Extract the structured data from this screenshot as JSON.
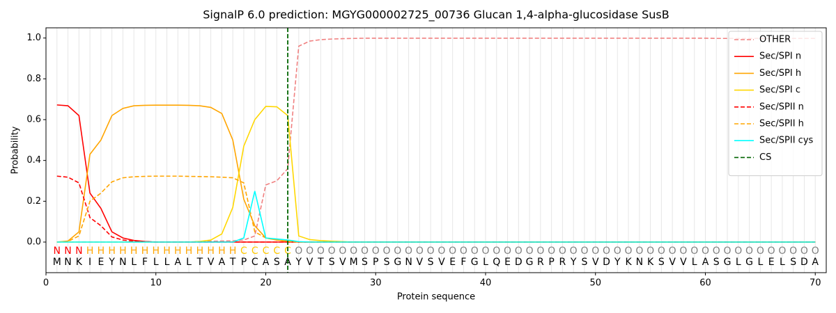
{
  "chart_data": {
    "type": "line",
    "title": "SignalP 6.0 prediction: MGYG000002725_00736 Glucan 1,4-alpha-glucosidase SusB",
    "xlabel": "Protein sequence",
    "ylabel": "Probability",
    "xlim": [
      0,
      71
    ],
    "ylim": [
      -0.15,
      1.05
    ],
    "xticks": [
      0,
      10,
      20,
      30,
      40,
      50,
      60,
      70
    ],
    "yticks": [
      {
        "value": 0,
        "label": "0.0"
      },
      {
        "value": 0.2,
        "label": "0.2"
      },
      {
        "value": 0.4,
        "label": "0.4"
      },
      {
        "value": 0.6,
        "label": "0.6"
      },
      {
        "value": 0.8,
        "label": "0.8"
      },
      {
        "value": 1,
        "label": "1.0"
      }
    ],
    "grid": true,
    "legend": "upper right",
    "x": [
      1,
      2,
      3,
      4,
      5,
      6,
      7,
      8,
      9,
      10,
      11,
      12,
      13,
      14,
      15,
      16,
      17,
      18,
      19,
      20,
      21,
      22,
      23,
      24,
      25,
      26,
      27,
      28,
      29,
      30,
      31,
      32,
      33,
      34,
      35,
      36,
      37,
      38,
      39,
      40,
      41,
      42,
      43,
      44,
      45,
      46,
      47,
      48,
      49,
      50,
      51,
      52,
      53,
      54,
      55,
      56,
      57,
      58,
      59,
      60,
      61,
      62,
      63,
      64,
      65,
      66,
      67,
      68,
      69,
      70
    ],
    "residues": [
      "M",
      "N",
      "K",
      "I",
      "E",
      "Y",
      "N",
      "L",
      "F",
      "L",
      "L",
      "A",
      "L",
      "T",
      "V",
      "A",
      "T",
      "P",
      "C",
      "A",
      "S",
      "A",
      "Y",
      "V",
      "T",
      "S",
      "V",
      "M",
      "S",
      "P",
      "S",
      "G",
      "N",
      "V",
      "S",
      "V",
      "E",
      "F",
      "G",
      "L",
      "Q",
      "E",
      "D",
      "G",
      "R",
      "P",
      "R",
      "Y",
      "S",
      "V",
      "D",
      "Y",
      "K",
      "N",
      "K",
      "S",
      "V",
      "V",
      "L",
      "A",
      "S",
      "G",
      "L",
      "G",
      "L",
      "E",
      "L",
      "S",
      "D",
      "A"
    ],
    "region_labels": [
      "N",
      "N",
      "N",
      "H",
      "H",
      "H",
      "H",
      "H",
      "H",
      "H",
      "H",
      "H",
      "H",
      "H",
      "H",
      "H",
      "H",
      "C",
      "C",
      "C",
      "C",
      "C",
      "O",
      "O",
      "O",
      "O",
      "O",
      "O",
      "O",
      "O",
      "O",
      "O",
      "O",
      "O",
      "O",
      "O",
      "O",
      "O",
      "O",
      "O",
      "O",
      "O",
      "O",
      "O",
      "O",
      "O",
      "O",
      "O",
      "O",
      "O",
      "O",
      "O",
      "O",
      "O",
      "O",
      "O",
      "O",
      "O",
      "O",
      "O",
      "O",
      "O",
      "O",
      "O",
      "O",
      "O",
      "O",
      "O",
      "O",
      "O"
    ],
    "region_colors": {
      "N": "#ff0000",
      "H": "#ffa500",
      "C": "#ffc800",
      "O": "#808080"
    },
    "series": [
      {
        "name": "OTHER",
        "color": "#f08080",
        "dash": true,
        "values": [
          0,
          0,
          0,
          0,
          0,
          0,
          0,
          0,
          0,
          0,
          0,
          0,
          0,
          0.003,
          0.004,
          0.005,
          0.006,
          0.01,
          0.03,
          0.28,
          0.3,
          0.36,
          0.96,
          0.985,
          0.992,
          0.995,
          0.997,
          0.998,
          0.999,
          0.999,
          0.999,
          0.999,
          0.999,
          0.999,
          0.999,
          0.999,
          0.999,
          0.999,
          0.999,
          0.999,
          0.999,
          0.999,
          0.999,
          0.999,
          0.999,
          0.999,
          0.999,
          0.999,
          0.999,
          0.999,
          0.999,
          0.999,
          0.999,
          0.999,
          0.999,
          0.999,
          0.999,
          0.999,
          0.999,
          0.999,
          0.998,
          0.998,
          0.998,
          0.998,
          0.998,
          0.998,
          0.998,
          0.998,
          0.998,
          0.998
        ]
      },
      {
        "name": "Sec/SPI n",
        "color": "#ff0000",
        "dash": false,
        "values": [
          0.672,
          0.668,
          0.62,
          0.24,
          0.165,
          0.05,
          0.02,
          0.008,
          0.003,
          0,
          0,
          0,
          0,
          0,
          0,
          0,
          0,
          0,
          0,
          0,
          0,
          0,
          0,
          0,
          0,
          0,
          0,
          0,
          0,
          0,
          0,
          0,
          0,
          0,
          0,
          0,
          0,
          0,
          0,
          0,
          0,
          0,
          0,
          0,
          0,
          0,
          0,
          0,
          0,
          0,
          0,
          0,
          0,
          0,
          0,
          0,
          0,
          0,
          0,
          0,
          0,
          0,
          0,
          0,
          0,
          0,
          0,
          0,
          0,
          0
        ]
      },
      {
        "name": "Sec/SPI h",
        "color": "#ffa500",
        "dash": false,
        "values": [
          0,
          0.005,
          0.05,
          0.43,
          0.5,
          0.62,
          0.655,
          0.668,
          0.67,
          0.671,
          0.671,
          0.671,
          0.67,
          0.668,
          0.66,
          0.63,
          0.5,
          0.21,
          0.08,
          0.02,
          0.01,
          0.005,
          0,
          0,
          0,
          0,
          0,
          0,
          0,
          0,
          0,
          0,
          0,
          0,
          0,
          0,
          0,
          0,
          0,
          0,
          0,
          0,
          0,
          0,
          0,
          0,
          0,
          0,
          0,
          0,
          0,
          0,
          0,
          0,
          0,
          0,
          0,
          0,
          0,
          0,
          0,
          0,
          0,
          0,
          0,
          0,
          0,
          0,
          0,
          0
        ]
      },
      {
        "name": "Sec/SPI c",
        "color": "#ffd700",
        "dash": false,
        "values": [
          0,
          0,
          0,
          0,
          0,
          0,
          0,
          0,
          0,
          0,
          0,
          0,
          0,
          0.003,
          0.01,
          0.04,
          0.17,
          0.47,
          0.6,
          0.665,
          0.663,
          0.62,
          0.03,
          0.012,
          0.007,
          0.004,
          0.002,
          0,
          0,
          0,
          0,
          0,
          0,
          0,
          0,
          0,
          0,
          0,
          0,
          0,
          0,
          0,
          0,
          0,
          0,
          0,
          0,
          0,
          0,
          0,
          0,
          0,
          0,
          0,
          0,
          0,
          0,
          0,
          0,
          0,
          0,
          0,
          0,
          0,
          0,
          0,
          0,
          0,
          0,
          0
        ]
      },
      {
        "name": "Sec/SPII n",
        "color": "#ff0000",
        "dash": true,
        "values": [
          0.323,
          0.318,
          0.29,
          0.12,
          0.08,
          0.025,
          0.01,
          0.004,
          0.002,
          0,
          0,
          0,
          0,
          0,
          0,
          0,
          0,
          0,
          0,
          0,
          0,
          0,
          0,
          0,
          0,
          0,
          0,
          0,
          0,
          0,
          0,
          0,
          0,
          0,
          0,
          0,
          0,
          0,
          0,
          0,
          0,
          0,
          0,
          0,
          0,
          0,
          0,
          0,
          0,
          0,
          0,
          0,
          0,
          0,
          0,
          0,
          0,
          0,
          0,
          0,
          0,
          0,
          0,
          0,
          0,
          0,
          0,
          0,
          0,
          0
        ]
      },
      {
        "name": "Sec/SPII h",
        "color": "#ffa500",
        "dash": true,
        "values": [
          0,
          0.003,
          0.03,
          0.2,
          0.24,
          0.295,
          0.315,
          0.32,
          0.322,
          0.323,
          0.323,
          0.323,
          0.322,
          0.321,
          0.32,
          0.318,
          0.315,
          0.29,
          0.05,
          0.02,
          0.01,
          0.003,
          0,
          0,
          0,
          0,
          0,
          0,
          0,
          0,
          0,
          0,
          0,
          0,
          0,
          0,
          0,
          0,
          0,
          0,
          0,
          0,
          0,
          0,
          0,
          0,
          0,
          0,
          0,
          0,
          0,
          0,
          0,
          0,
          0,
          0,
          0,
          0,
          0,
          0,
          0,
          0,
          0,
          0,
          0,
          0,
          0,
          0,
          0,
          0
        ]
      },
      {
        "name": "Sec/SPII cys",
        "color": "#00ffff",
        "dash": false,
        "values": [
          0,
          0,
          0,
          0,
          0,
          0,
          0,
          0,
          0,
          0,
          0,
          0,
          0,
          0,
          0,
          0,
          0,
          0.02,
          0.25,
          0.02,
          0.015,
          0.01,
          0.002,
          0,
          0,
          0,
          0,
          0,
          0,
          0,
          0,
          0,
          0,
          0,
          0,
          0,
          0,
          0,
          0,
          0,
          0,
          0,
          0,
          0,
          0,
          0,
          0,
          0,
          0,
          0,
          0,
          0,
          0,
          0,
          0,
          0,
          0,
          0,
          0,
          0,
          0,
          0,
          0,
          0,
          0,
          0,
          0,
          0,
          0,
          0
        ]
      }
    ],
    "cs": {
      "name": "CS",
      "x": 22,
      "color": "#006400"
    }
  }
}
